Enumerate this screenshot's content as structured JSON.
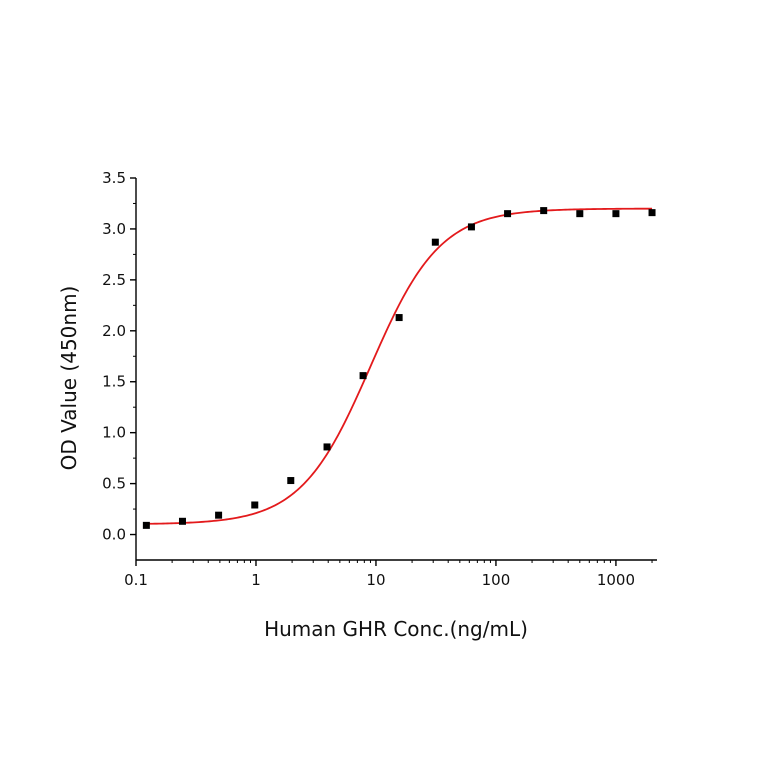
{
  "chart_data": {
    "type": "scatter",
    "title": "",
    "xlabel": "Human GHR Conc.(ng/mL)",
    "ylabel": "OD Value (450nm)",
    "xscale": "log",
    "xlim": [
      0.1,
      2200
    ],
    "ylim": [
      -0.25,
      3.5
    ],
    "x_ticks": [
      0.1,
      1,
      10,
      100,
      1000
    ],
    "x_tick_labels": [
      "0.1",
      "1",
      "10",
      "100",
      "1000"
    ],
    "y_ticks": [
      0,
      0.5,
      1,
      1.5,
      2,
      2.5,
      3,
      3.5
    ],
    "y_tick_labels": [
      "0.0",
      "0.5",
      "1.0",
      "1.5",
      "2.0",
      "2.5",
      "3.0",
      "3.5"
    ],
    "grid": false,
    "legend": "none",
    "series": [
      {
        "kind": "points",
        "marker": "square",
        "color": "#000000",
        "x": [
          0.122,
          0.244,
          0.488,
          0.977,
          1.95,
          3.91,
          7.81,
          15.6,
          31.25,
          62.5,
          125,
          250,
          500,
          1000,
          2000
        ],
        "y": [
          0.09,
          0.13,
          0.19,
          0.29,
          0.53,
          0.86,
          1.56,
          2.13,
          2.87,
          3.02,
          3.15,
          3.18,
          3.15,
          3.15,
          3.16
        ]
      },
      {
        "kind": "fit",
        "color": "#e31a1c",
        "model": "4PL",
        "bottom": 0.1,
        "top": 3.2,
        "ec50": 9.0,
        "hill": 1.5
      }
    ]
  }
}
